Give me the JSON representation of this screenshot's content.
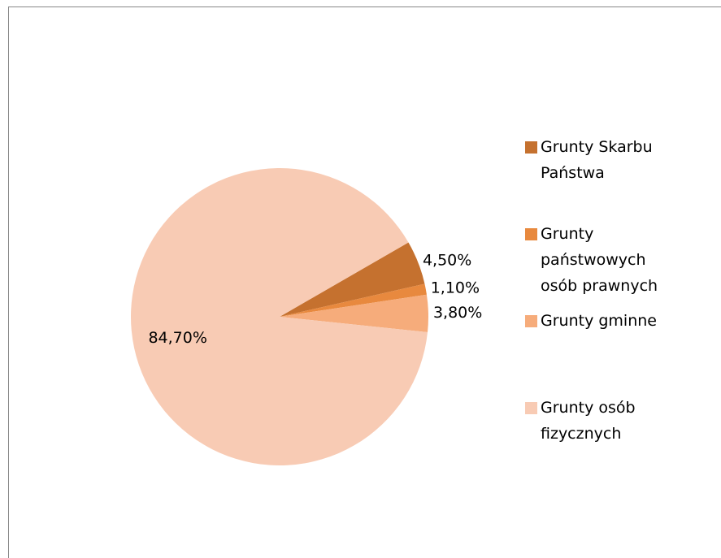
{
  "chart_data": {
    "type": "pie",
    "categories": [
      "Grunty Skarbu Państwa",
      "Grunty państwowych osób prawnych",
      "Grunty gminne",
      "Grunty osób fizycznych"
    ],
    "values": [
      4.5,
      1.1,
      3.8,
      84.7
    ],
    "value_labels": [
      "4,50%",
      "1,10%",
      "3,80%",
      "84,70%"
    ],
    "colors": [
      "#c5712f",
      "#e8893e",
      "#f6ac7b",
      "#f8cbb4"
    ]
  }
}
